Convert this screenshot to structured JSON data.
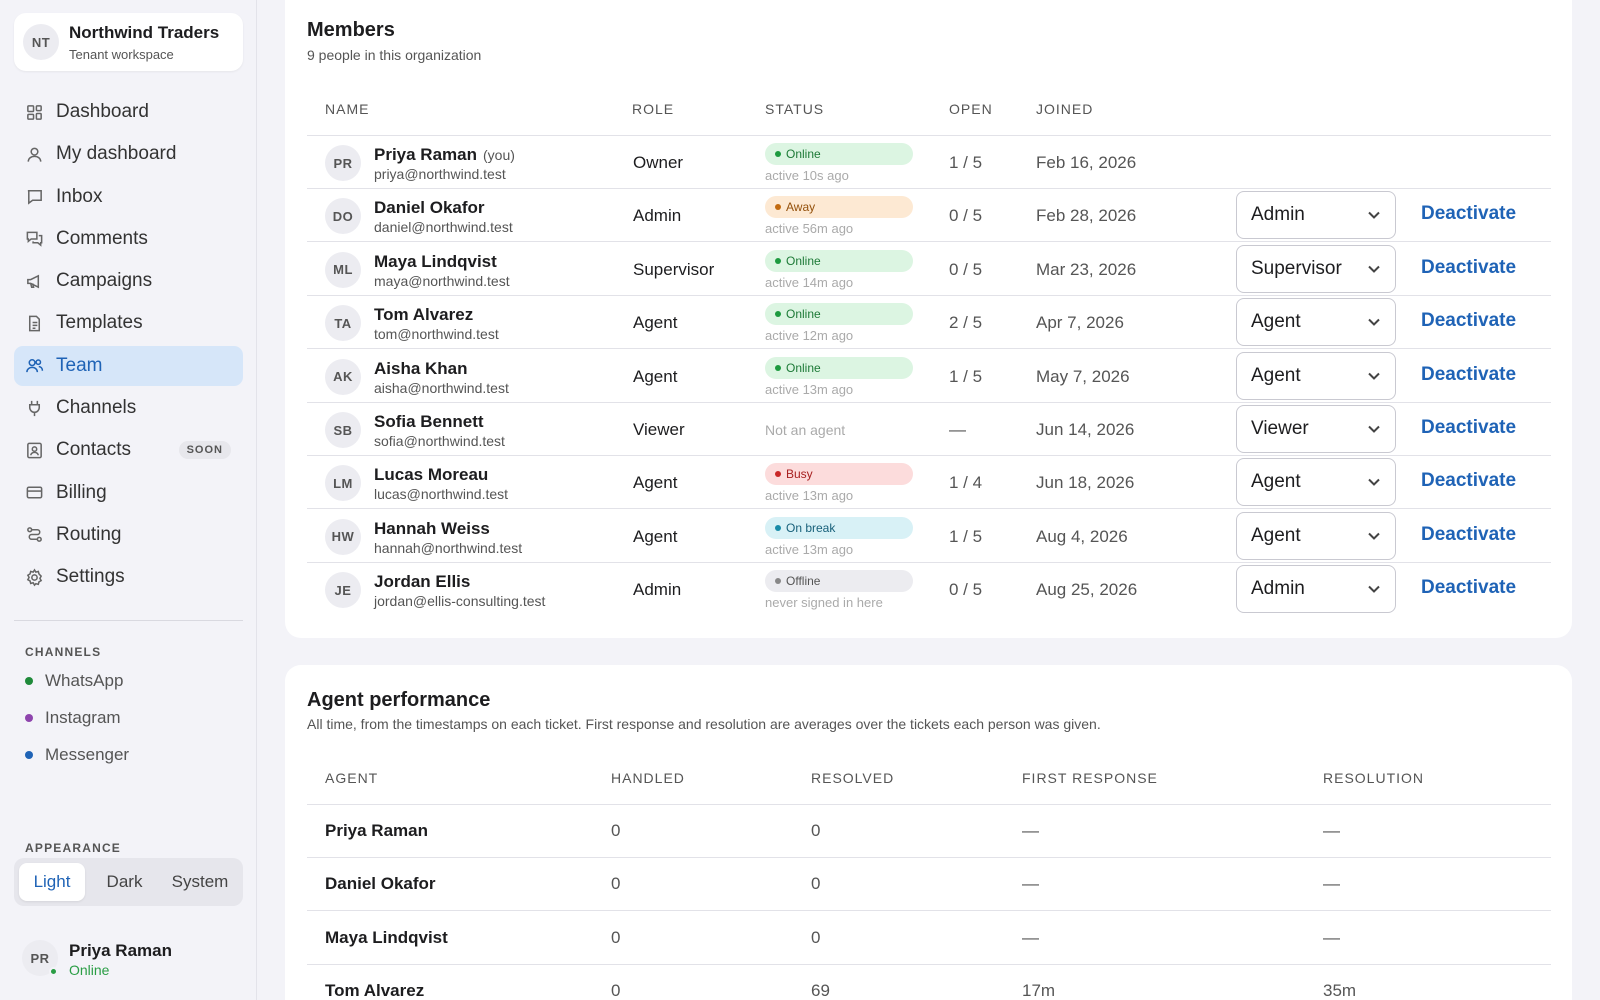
{
  "workspace": {
    "initials": "NT",
    "name": "Northwind Traders",
    "subtitle": "Tenant workspace"
  },
  "nav": [
    {
      "label": "Dashboard",
      "icon": "grid-icon"
    },
    {
      "label": "My dashboard",
      "icon": "person-icon"
    },
    {
      "label": "Inbox",
      "icon": "inbox-icon"
    },
    {
      "label": "Comments",
      "icon": "comments-icon"
    },
    {
      "label": "Campaigns",
      "icon": "megaphone-icon"
    },
    {
      "label": "Templates",
      "icon": "document-icon"
    },
    {
      "label": "Team",
      "icon": "team-icon",
      "active": true
    },
    {
      "label": "Channels",
      "icon": "plug-icon"
    },
    {
      "label": "Contacts",
      "icon": "contact-card-icon",
      "badge": "SOON"
    },
    {
      "label": "Billing",
      "icon": "credit-card-icon"
    },
    {
      "label": "Routing",
      "icon": "routing-icon"
    },
    {
      "label": "Settings",
      "icon": "gear-icon"
    }
  ],
  "channels_section": {
    "label": "CHANNELS",
    "items": [
      {
        "label": "WhatsApp",
        "color": "#1f8a3a"
      },
      {
        "label": "Instagram",
        "color": "#8e44ad"
      },
      {
        "label": "Messenger",
        "color": "#1f63b6"
      }
    ]
  },
  "appearance": {
    "label": "APPEARANCE",
    "options": [
      "Light",
      "Dark",
      "System"
    ],
    "selected": "Light"
  },
  "current_user": {
    "initials": "PR",
    "name": "Priya Raman",
    "status": "Online"
  },
  "members": {
    "title": "Members",
    "subtitle": "9 people in this organization",
    "columns": [
      "NAME",
      "ROLE",
      "STATUS",
      "OPEN",
      "JOINED"
    ],
    "deactivate_label": "Deactivate",
    "you_label": "(you)",
    "rows": [
      {
        "initials": "PR",
        "name": "Priya Raman",
        "you": true,
        "email": "priya@northwind.test",
        "role": "Owner",
        "status": "Online",
        "status_kind": "online",
        "activity": "active 10s ago",
        "open": "1 / 5",
        "joined": "Feb 16, 2026",
        "select": null
      },
      {
        "initials": "DO",
        "name": "Daniel Okafor",
        "email": "daniel@northwind.test",
        "role": "Admin",
        "status": "Away",
        "status_kind": "away",
        "activity": "active 56m ago",
        "open": "0 / 5",
        "joined": "Feb 28, 2026",
        "select": "Admin"
      },
      {
        "initials": "ML",
        "name": "Maya Lindqvist",
        "email": "maya@northwind.test",
        "role": "Supervisor",
        "status": "Online",
        "status_kind": "online",
        "activity": "active 14m ago",
        "open": "0 / 5",
        "joined": "Mar 23, 2026",
        "select": "Supervisor"
      },
      {
        "initials": "TA",
        "name": "Tom Alvarez",
        "email": "tom@northwind.test",
        "role": "Agent",
        "status": "Online",
        "status_kind": "online",
        "activity": "active 12m ago",
        "open": "2 / 5",
        "joined": "Apr 7, 2026",
        "select": "Agent"
      },
      {
        "initials": "AK",
        "name": "Aisha Khan",
        "email": "aisha@northwind.test",
        "role": "Agent",
        "status": "Online",
        "status_kind": "online",
        "activity": "active 13m ago",
        "open": "1 / 5",
        "joined": "May 7, 2026",
        "select": "Agent"
      },
      {
        "initials": "SB",
        "name": "Sofia Bennett",
        "email": "sofia@northwind.test",
        "role": "Viewer",
        "status": "Not an agent",
        "status_kind": "none",
        "activity": "",
        "open": "—",
        "joined": "Jun 14, 2026",
        "select": "Viewer"
      },
      {
        "initials": "LM",
        "name": "Lucas Moreau",
        "email": "lucas@northwind.test",
        "role": "Agent",
        "status": "Busy",
        "status_kind": "busy",
        "activity": "active 13m ago",
        "open": "1 / 4",
        "joined": "Jun 18, 2026",
        "select": "Agent"
      },
      {
        "initials": "HW",
        "name": "Hannah Weiss",
        "email": "hannah@northwind.test",
        "role": "Agent",
        "status": "On break",
        "status_kind": "break",
        "activity": "active 13m ago",
        "open": "1 / 5",
        "joined": "Aug 4, 2026",
        "select": "Agent"
      },
      {
        "initials": "JE",
        "name": "Jordan Ellis",
        "email": "jordan@ellis-consulting.test",
        "role": "Admin",
        "status": "Offline",
        "status_kind": "offline",
        "activity": "never signed in here",
        "open": "0 / 5",
        "joined": "Aug 25, 2026",
        "select": "Admin"
      }
    ]
  },
  "performance": {
    "title": "Agent performance",
    "subtitle": "All time, from the timestamps on each ticket. First response and resolution are averages over the tickets each person was given.",
    "columns": [
      "AGENT",
      "HANDLED",
      "RESOLVED",
      "FIRST RESPONSE",
      "RESOLUTION"
    ],
    "rows": [
      {
        "agent": "Priya Raman",
        "handled": "0",
        "resolved": "0",
        "first_response": "—",
        "resolution": "—"
      },
      {
        "agent": "Daniel Okafor",
        "handled": "0",
        "resolved": "0",
        "first_response": "—",
        "resolution": "—"
      },
      {
        "agent": "Maya Lindqvist",
        "handled": "0",
        "resolved": "0",
        "first_response": "—",
        "resolution": "—"
      },
      {
        "agent": "Tom Alvarez",
        "handled": "0",
        "resolved": "69",
        "first_response": "17m",
        "resolution": "35m"
      }
    ]
  }
}
